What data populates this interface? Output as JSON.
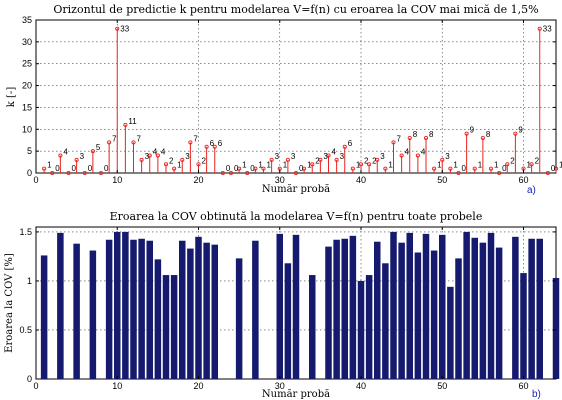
{
  "chart_data": [
    {
      "type": "stem",
      "title": "Orizontul de predictie k pentru modelarea V=f(n) cu eroarea la COV mai mică de 1,5%",
      "xlabel": "Număr probă",
      "ylabel": "k [-]",
      "panel_tag": "a)",
      "xlim": [
        0,
        64
      ],
      "ylim": [
        0,
        35
      ],
      "xticks": [
        "0",
        "10",
        "20",
        "30",
        "40",
        "50",
        "60"
      ],
      "yticks": [
        "0",
        "5",
        "10",
        "15",
        "20",
        "25",
        "30",
        "35"
      ],
      "grid": true,
      "series_color": "#e8231d",
      "x": [
        1,
        2,
        3,
        4,
        5,
        6,
        7,
        8,
        9,
        10,
        11,
        12,
        13,
        14,
        15,
        16,
        17,
        18,
        19,
        20,
        21,
        22,
        23,
        24,
        25,
        26,
        27,
        28,
        29,
        30,
        31,
        32,
        33,
        34,
        35,
        36,
        37,
        38,
        39,
        40,
        41,
        42,
        43,
        44,
        45,
        46,
        47,
        48,
        49,
        50,
        51,
        52,
        53,
        54,
        55,
        56,
        57,
        58,
        59,
        60,
        61,
        62,
        63,
        64
      ],
      "values": [
        1,
        0,
        4,
        0,
        3,
        0,
        5,
        0,
        7,
        33,
        11,
        7,
        3,
        4,
        4,
        2,
        1,
        3,
        7,
        2,
        6,
        6,
        0,
        0,
        1,
        0,
        1,
        1,
        3,
        1,
        3,
        0,
        1,
        2,
        3,
        4,
        3,
        6,
        1,
        2,
        2,
        3,
        1,
        7,
        4,
        8,
        4,
        8,
        1,
        3,
        1,
        0,
        9,
        1,
        8,
        1,
        0,
        2,
        9,
        1,
        2,
        33,
        0,
        1
      ],
      "labels": [
        "1",
        "0",
        "4",
        "0",
        "3",
        "0",
        "5",
        "0",
        "7",
        "33",
        "11",
        "7",
        "3",
        "4",
        "4",
        "2",
        "1",
        "3",
        "7",
        "2",
        "6",
        "6",
        "0",
        "0",
        "1",
        "0",
        "1",
        "1",
        "3",
        "1",
        "3",
        "0",
        "1",
        "2",
        "3",
        "4",
        "3",
        "6",
        "1",
        "2",
        "2",
        "3",
        "1",
        "7",
        "4",
        "8",
        "4",
        "8",
        "1",
        "3",
        "1",
        "0",
        "9",
        "1",
        "8",
        "1",
        "0",
        "2",
        "9",
        "1",
        "2",
        "33",
        "0",
        "1"
      ]
    },
    {
      "type": "bar",
      "title": "Eroarea la COV obtinută la modelarea V=f(n) pentru toate probele",
      "xlabel": "Număr probă",
      "ylabel": "Eroarea la COV [%]",
      "panel_tag": "b)",
      "xlim": [
        0,
        64
      ],
      "ylim": [
        0,
        1.55
      ],
      "xticks": [
        "0",
        "10",
        "20",
        "30",
        "40",
        "50",
        "60"
      ],
      "yticks": [
        "0",
        "0.5",
        "1",
        "1.5"
      ],
      "grid": true,
      "bar_color": "#151a6e",
      "x": [
        1,
        2,
        3,
        4,
        5,
        6,
        7,
        8,
        9,
        10,
        11,
        12,
        13,
        14,
        15,
        16,
        17,
        18,
        19,
        20,
        21,
        22,
        23,
        24,
        25,
        26,
        27,
        28,
        29,
        30,
        31,
        32,
        33,
        34,
        35,
        36,
        37,
        38,
        39,
        40,
        41,
        42,
        43,
        44,
        45,
        46,
        47,
        48,
        49,
        50,
        51,
        52,
        53,
        54,
        55,
        56,
        57,
        58,
        59,
        60,
        61,
        62,
        63,
        64
      ],
      "values": [
        1.26,
        0,
        1.49,
        0,
        1.38,
        0,
        1.31,
        0,
        1.42,
        1.5,
        1.5,
        1.42,
        1.43,
        1.41,
        1.22,
        1.06,
        1.06,
        1.41,
        1.33,
        1.45,
        1.39,
        1.37,
        0,
        0,
        1.23,
        0,
        1.41,
        0,
        0,
        1.48,
        1.18,
        1.47,
        0,
        1.06,
        0,
        1.35,
        1.42,
        1.43,
        1.46,
        1.0,
        1.06,
        1.4,
        1.18,
        1.5,
        1.39,
        1.49,
        1.29,
        1.48,
        1.31,
        1.47,
        0.94,
        1.23,
        1.5,
        1.44,
        1.39,
        1.49,
        1.34,
        0,
        1.45,
        1.08,
        1.43,
        1.43,
        0,
        1.03
      ]
    }
  ]
}
